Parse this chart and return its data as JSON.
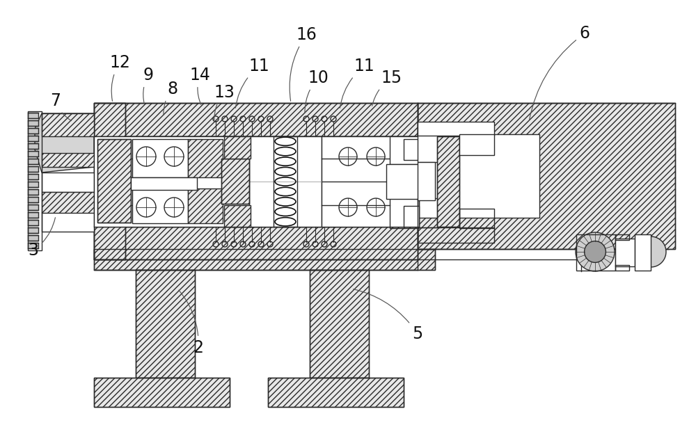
{
  "bg": "#ffffff",
  "lc": "#2a2a2a",
  "hatch_fc": "#e8e8e8",
  "hatch_pattern": "////",
  "lw": 1.0,
  "labels": [
    [
      "2",
      285,
      500,
      255,
      415
    ],
    [
      "3",
      48,
      360,
      80,
      310
    ],
    [
      "5",
      600,
      480,
      505,
      415
    ],
    [
      "6",
      840,
      48,
      760,
      175
    ],
    [
      "7",
      80,
      145,
      105,
      175
    ],
    [
      "8",
      248,
      128,
      235,
      168
    ],
    [
      "9",
      213,
      108,
      208,
      152
    ],
    [
      "10",
      457,
      112,
      438,
      165
    ],
    [
      "11",
      372,
      95,
      338,
      158
    ],
    [
      "11",
      523,
      95,
      488,
      158
    ],
    [
      "12",
      172,
      90,
      162,
      148
    ],
    [
      "13",
      322,
      133,
      308,
      178
    ],
    [
      "14",
      287,
      108,
      290,
      153
    ],
    [
      "15",
      562,
      112,
      534,
      155
    ],
    [
      "16",
      440,
      50,
      418,
      148
    ]
  ]
}
